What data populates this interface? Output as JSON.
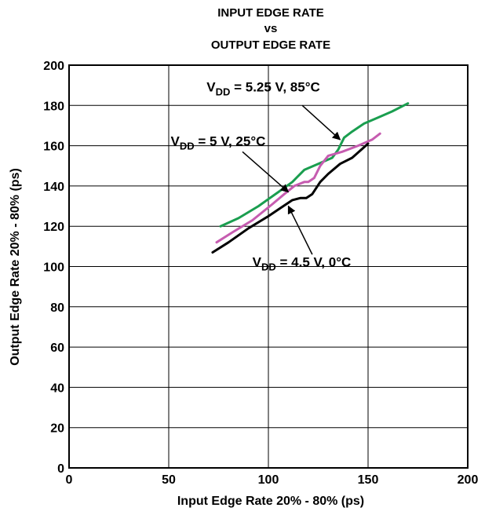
{
  "chart_data": {
    "type": "line",
    "title": [
      "INPUT EDGE RATE",
      "vs",
      "OUTPUT EDGE RATE"
    ],
    "xlabel": "Input Edge Rate 20% - 80% (ps)",
    "ylabel": "Output Edge Rate 20% - 80% (ps)",
    "xlim": [
      0,
      200
    ],
    "ylim": [
      0,
      200
    ],
    "x_ticks": [
      0,
      50,
      100,
      150,
      200
    ],
    "y_ticks": [
      0,
      20,
      40,
      60,
      80,
      100,
      120,
      140,
      160,
      180,
      200
    ],
    "grid": true,
    "series": [
      {
        "id": "vdd-525-85c",
        "color": "#1a9e4f",
        "x": [
          76,
          85,
          95,
          105,
          112,
          118,
          125,
          132,
          135,
          138,
          142,
          148,
          155,
          162,
          170
        ],
        "y": [
          120,
          124,
          130,
          137,
          142,
          148,
          151,
          154,
          158,
          164,
          167,
          171,
          174,
          177,
          181
        ]
      },
      {
        "id": "vdd-5-25c",
        "color": "#c65cb0",
        "x": [
          74,
          82,
          92,
          102,
          108,
          113,
          118,
          120,
          123,
          126,
          130,
          137,
          145,
          152,
          156
        ],
        "y": [
          112,
          117,
          123,
          131,
          136,
          140,
          142,
          142,
          144,
          150,
          155,
          157,
          160,
          163,
          166
        ]
      },
      {
        "id": "vdd-45-0c",
        "color": "#000000",
        "x": [
          72,
          80,
          90,
          100,
          106,
          112,
          116,
          119,
          122,
          126,
          130,
          136,
          142,
          150
        ],
        "y": [
          107,
          112,
          119,
          125,
          129,
          133,
          134,
          134,
          136,
          142,
          146,
          151,
          154,
          161
        ]
      }
    ],
    "annotations": [
      {
        "text_main": "V",
        "text_sub": "DD",
        "text_rest": " = 5.25 V, 85°C",
        "label_at": [
          69,
          187
        ],
        "arrow_from": [
          117,
          180
        ],
        "arrow_to": [
          136,
          163
        ]
      },
      {
        "text_main": "V",
        "text_sub": "DD",
        "text_rest": " = 5 V, 25°C",
        "label_at": [
          51,
          160
        ],
        "arrow_from": [
          87,
          157
        ],
        "arrow_to": [
          110,
          137
        ]
      },
      {
        "text_main": "V",
        "text_sub": "DD",
        "text_rest": " = 4.5 V, 0°C",
        "label_at": [
          92,
          100
        ],
        "arrow_from": [
          122,
          106
        ],
        "arrow_to": [
          110,
          130
        ]
      }
    ]
  }
}
